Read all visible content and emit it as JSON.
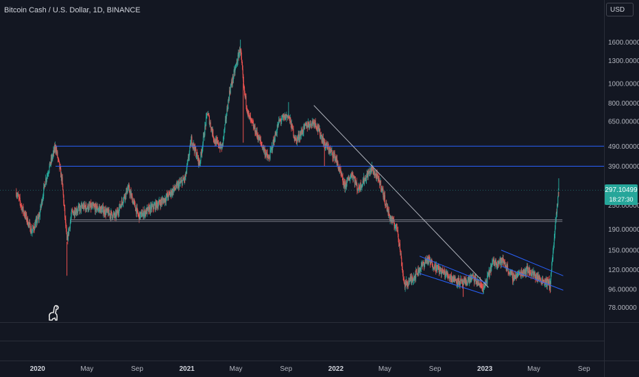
{
  "header": {
    "title": "Bitcoin Cash / U.S. Dollar, 1D, BINANCE",
    "currency_button": "USD"
  },
  "price_badge": {
    "price": "297.10499",
    "countdown": "18:27:30"
  },
  "logo": {
    "icon": "tradingview-dino-icon"
  },
  "colors": {
    "background": "#131722",
    "up": "#26a69a",
    "down": "#ef5350",
    "horizontal_line": "#2962ff",
    "trendline": "#b2b5be",
    "channel": "#2962ff"
  },
  "chart_data": {
    "type": "candlestick",
    "title": "Bitcoin Cash / U.S. Dollar, 1D, BINANCE",
    "y_scale": "log",
    "ylim": [
      66,
      2050
    ],
    "xlim": [
      "2019-10-01",
      "2023-10-20"
    ],
    "y_ticks": [
      {
        "v": 1600,
        "label": "1600.00000"
      },
      {
        "v": 1300,
        "label": "1300.00000"
      },
      {
        "v": 1000,
        "label": "1000.00000"
      },
      {
        "v": 800,
        "label": "800.00000"
      },
      {
        "v": 650,
        "label": "650.00000"
      },
      {
        "v": 490,
        "label": "490.00000"
      },
      {
        "v": 390,
        "label": "390.00000"
      },
      {
        "v": 250,
        "label": "250.00000"
      },
      {
        "v": 190,
        "label": "190.00000"
      },
      {
        "v": 150,
        "label": "150.00000"
      },
      {
        "v": 120,
        "label": "120.00000"
      },
      {
        "v": 96,
        "label": "96.00000"
      },
      {
        "v": 78,
        "label": "78.00000"
      }
    ],
    "x_ticks": [
      {
        "date": "2020-01-01",
        "label": "2020",
        "year": true
      },
      {
        "date": "2020-05-01",
        "label": "May",
        "year": false
      },
      {
        "date": "2020-09-01",
        "label": "Sep",
        "year": false
      },
      {
        "date": "2021-01-01",
        "label": "2021",
        "year": true
      },
      {
        "date": "2021-05-01",
        "label": "May",
        "year": false
      },
      {
        "date": "2021-09-01",
        "label": "Sep",
        "year": false
      },
      {
        "date": "2022-01-01",
        "label": "2022",
        "year": true
      },
      {
        "date": "2022-05-01",
        "label": "May",
        "year": false
      },
      {
        "date": "2022-09-01",
        "label": "Sep",
        "year": false
      },
      {
        "date": "2023-01-01",
        "label": "2023",
        "year": true
      },
      {
        "date": "2023-05-01",
        "label": "May",
        "year": false
      },
      {
        "date": "2023-09-01",
        "label": "Sep",
        "year": false
      }
    ],
    "price_path": [
      [
        "2019-11-10",
        290
      ],
      [
        "2019-11-25",
        240
      ],
      [
        "2019-12-18",
        185
      ],
      [
        "2020-01-05",
        220
      ],
      [
        "2020-01-20",
        330
      ],
      [
        "2020-02-14",
        490
      ],
      [
        "2020-03-01",
        330
      ],
      [
        "2020-03-13",
        165
      ],
      [
        "2020-03-25",
        230
      ],
      [
        "2020-04-20",
        245
      ],
      [
        "2020-05-10",
        245
      ],
      [
        "2020-06-01",
        240
      ],
      [
        "2020-07-10",
        220
      ],
      [
        "2020-08-10",
        305
      ],
      [
        "2020-09-05",
        220
      ],
      [
        "2020-10-10",
        245
      ],
      [
        "2020-11-05",
        265
      ],
      [
        "2020-12-01",
        300
      ],
      [
        "2020-12-28",
        340
      ],
      [
        "2021-01-12",
        530
      ],
      [
        "2021-02-01",
        400
      ],
      [
        "2021-02-20",
        720
      ],
      [
        "2021-03-10",
        520
      ],
      [
        "2021-03-28",
        480
      ],
      [
        "2021-04-15",
        900
      ],
      [
        "2021-05-12",
        1500
      ],
      [
        "2021-05-20",
        950
      ],
      [
        "2021-06-01",
        690
      ],
      [
        "2021-07-01",
        510
      ],
      [
        "2021-07-20",
        420
      ],
      [
        "2021-08-15",
        650
      ],
      [
        "2021-09-06",
        700
      ],
      [
        "2021-09-25",
        520
      ],
      [
        "2021-10-20",
        620
      ],
      [
        "2021-11-10",
        650
      ],
      [
        "2021-12-05",
        500
      ],
      [
        "2021-12-31",
        430
      ],
      [
        "2022-01-22",
        310
      ],
      [
        "2022-02-10",
        360
      ],
      [
        "2022-02-24",
        300
      ],
      [
        "2022-03-30",
        380
      ],
      [
        "2022-04-20",
        320
      ],
      [
        "2022-05-12",
        220
      ],
      [
        "2022-06-01",
        190
      ],
      [
        "2022-06-18",
        100
      ],
      [
        "2022-07-10",
        110
      ],
      [
        "2022-08-12",
        135
      ],
      [
        "2022-09-10",
        120
      ],
      [
        "2022-10-10",
        110
      ],
      [
        "2022-11-09",
        102
      ],
      [
        "2022-12-01",
        110
      ],
      [
        "2022-12-30",
        97
      ],
      [
        "2023-01-20",
        130
      ],
      [
        "2023-02-15",
        132
      ],
      [
        "2023-03-10",
        110
      ],
      [
        "2023-04-15",
        120
      ],
      [
        "2023-05-15",
        108
      ],
      [
        "2023-06-10",
        102
      ],
      [
        "2023-06-22",
        190
      ],
      [
        "2023-07-01",
        297
      ]
    ],
    "spikes": [
      {
        "date": "2020-03-13",
        "low": 112
      },
      {
        "date": "2021-05-12",
        "high": 1650
      },
      {
        "date": "2021-05-19",
        "low": 510
      },
      {
        "date": "2021-09-07",
        "high": 810
      },
      {
        "date": "2021-12-04",
        "low": 390
      },
      {
        "date": "2022-11-09",
        "low": 88
      },
      {
        "date": "2023-06-10",
        "low": 92
      },
      {
        "date": "2023-07-01",
        "high": 340
      }
    ],
    "horizontal_lines": [
      {
        "y": 490,
        "from": "2020-02-14",
        "color": "#2962ff"
      },
      {
        "y": 390,
        "from": "2020-02-14",
        "color": "#2962ff"
      },
      {
        "y": 212,
        "from": "2020-03-22",
        "to": "2023-07-10",
        "color": "#787b86"
      },
      {
        "y": 208,
        "from": "2020-03-22",
        "to": "2023-07-10",
        "color": "#787b86"
      }
    ],
    "trendlines": [
      {
        "from": [
          "2021-11-08",
          780
        ],
        "to": [
          "2023-01-10",
          98
        ],
        "color": "#b2b5be"
      }
    ],
    "channels": [
      {
        "upper": [
          [
            "2022-07-25",
            140
          ],
          [
            "2023-01-05",
            103
          ]
        ],
        "lower": [
          [
            "2022-07-25",
            115
          ],
          [
            "2022-12-28",
            91
          ]
        ],
        "color": "#2962ff"
      },
      {
        "upper": [
          [
            "2023-02-10",
            150
          ],
          [
            "2023-07-12",
            112
          ]
        ],
        "lower": [
          [
            "2023-02-10",
            125
          ],
          [
            "2023-07-12",
            95
          ]
        ],
        "color": "#2962ff"
      }
    ],
    "last_price": 297.10499
  }
}
